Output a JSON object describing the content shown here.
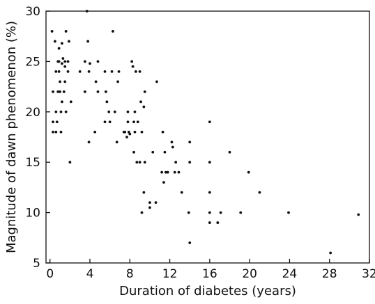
{
  "chart_data": {
    "type": "scatter",
    "title": "",
    "xlabel": "Duration of diabetes (years)",
    "ylabel": "Magnitude of dawn phenomenon (%)",
    "xlim": [
      -0.4,
      32
    ],
    "ylim": [
      5,
      30
    ],
    "xticks": [
      0,
      4,
      8,
      12,
      16,
      20,
      24,
      28,
      32
    ],
    "yticks": [
      5,
      10,
      15,
      20,
      25,
      30
    ],
    "xtick_labels": [
      "0",
      "4",
      "8",
      "12",
      "16",
      "20",
      "24",
      "28",
      "32"
    ],
    "ytick_labels": [
      "5",
      "10",
      "15",
      "20",
      "25",
      "30"
    ],
    "grid": false,
    "legend": "none",
    "marker_color": "#111111",
    "points": [
      [
        0.2,
        28
      ],
      [
        0.3,
        22
      ],
      [
        0.3,
        19
      ],
      [
        0.3,
        18
      ],
      [
        0.5,
        27
      ],
      [
        0.6,
        24
      ],
      [
        0.6,
        20
      ],
      [
        0.6,
        18
      ],
      [
        0.7,
        19
      ],
      [
        0.8,
        22
      ],
      [
        0.8,
        25
      ],
      [
        0.9,
        26.3
      ],
      [
        0.9,
        25
      ],
      [
        0.9,
        24
      ],
      [
        1.0,
        23
      ],
      [
        1.0,
        22
      ],
      [
        1.1,
        20
      ],
      [
        1.1,
        18
      ],
      [
        1.2,
        26.8
      ],
      [
        1.2,
        24.8
      ],
      [
        1.2,
        21
      ],
      [
        1.3,
        25.3
      ],
      [
        1.4,
        22
      ],
      [
        1.5,
        25
      ],
      [
        1.5,
        23
      ],
      [
        1.5,
        24.5
      ],
      [
        1.6,
        20
      ],
      [
        1.6,
        28
      ],
      [
        1.8,
        24
      ],
      [
        1.8,
        25
      ],
      [
        1.9,
        27
      ],
      [
        2.0,
        15
      ],
      [
        2.1,
        21
      ],
      [
        3.0,
        24
      ],
      [
        3.5,
        22
      ],
      [
        3.5,
        25
      ],
      [
        3.7,
        30
      ],
      [
        3.8,
        27
      ],
      [
        3.9,
        17
      ],
      [
        3.9,
        24
      ],
      [
        4.0,
        24.8
      ],
      [
        4.5,
        18
      ],
      [
        4.6,
        23
      ],
      [
        4.8,
        25
      ],
      [
        4.8,
        22
      ],
      [
        5.5,
        24
      ],
      [
        5.5,
        19
      ],
      [
        5.6,
        22
      ],
      [
        5.7,
        21
      ],
      [
        5.9,
        20
      ],
      [
        6.0,
        19
      ],
      [
        6.2,
        24
      ],
      [
        6.3,
        28
      ],
      [
        6.5,
        20
      ],
      [
        6.7,
        17
      ],
      [
        6.8,
        23
      ],
      [
        6.9,
        24
      ],
      [
        7.4,
        18
      ],
      [
        7.5,
        18
      ],
      [
        7.7,
        17.5
      ],
      [
        7.8,
        20
      ],
      [
        7.8,
        19
      ],
      [
        7.9,
        18
      ],
      [
        8.0,
        17.8
      ],
      [
        8.2,
        25
      ],
      [
        8.3,
        24.5
      ],
      [
        8.4,
        19
      ],
      [
        8.4,
        16
      ],
      [
        8.5,
        20
      ],
      [
        8.5,
        18
      ],
      [
        8.6,
        24
      ],
      [
        8.7,
        15
      ],
      [
        8.8,
        19
      ],
      [
        9.0,
        24
      ],
      [
        9.0,
        15
      ],
      [
        9.1,
        21
      ],
      [
        9.2,
        18
      ],
      [
        9.2,
        10
      ],
      [
        9.4,
        20.5
      ],
      [
        9.4,
        12
      ],
      [
        9.5,
        22
      ],
      [
        9.5,
        15
      ],
      [
        10.0,
        11
      ],
      [
        10.0,
        10.5
      ],
      [
        10.3,
        16
      ],
      [
        10.6,
        11
      ],
      [
        10.7,
        23
      ],
      [
        11.2,
        14
      ],
      [
        11.3,
        18
      ],
      [
        11.4,
        13
      ],
      [
        11.5,
        16
      ],
      [
        11.6,
        14
      ],
      [
        11.8,
        14
      ],
      [
        12.2,
        17
      ],
      [
        12.3,
        16.5
      ],
      [
        12.5,
        14
      ],
      [
        12.6,
        15
      ],
      [
        12.9,
        14
      ],
      [
        13.2,
        12
      ],
      [
        13.9,
        10
      ],
      [
        14.0,
        17
      ],
      [
        14.0,
        15
      ],
      [
        14.0,
        7
      ],
      [
        16.0,
        19
      ],
      [
        16.0,
        15
      ],
      [
        16.0,
        12
      ],
      [
        16.0,
        9
      ],
      [
        16.0,
        10
      ],
      [
        16.8,
        9
      ],
      [
        17.1,
        10
      ],
      [
        18.0,
        16
      ],
      [
        19.1,
        10
      ],
      [
        19.9,
        14
      ],
      [
        21.0,
        12
      ],
      [
        23.9,
        10
      ],
      [
        28.1,
        6
      ],
      [
        30.9,
        9.8
      ]
    ]
  }
}
